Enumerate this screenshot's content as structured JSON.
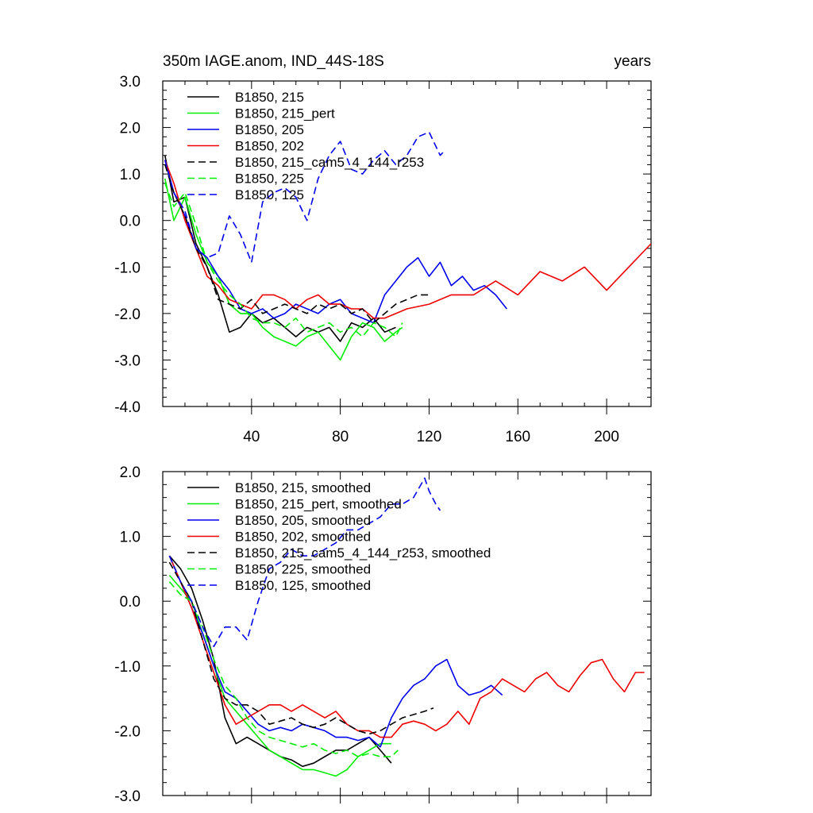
{
  "chart_data": [
    {
      "type": "line",
      "title_left": "350m IAGE.anom, IND_44S-18S",
      "title_right": "years",
      "xlim": [
        0,
        220
      ],
      "ylim": [
        -4.0,
        3.0
      ],
      "xticks": [
        40,
        80,
        120,
        160,
        200
      ],
      "xtick_labels": [
        "40",
        "80",
        "120",
        "160",
        "200"
      ],
      "yticks": [
        3.0,
        2.0,
        1.0,
        0.0,
        -1.0,
        -2.0,
        -3.0,
        -4.0
      ],
      "ytick_labels": [
        "3.0",
        "2.0",
        "1.0",
        "0.0",
        "-1.0",
        "-2.0",
        "-3.0",
        "-4.0"
      ],
      "legend_position": "top-left",
      "series": [
        {
          "name": "B1850, 215",
          "color": "#000000",
          "dash": "solid",
          "x": [
            1,
            5,
            10,
            15,
            20,
            25,
            30,
            35,
            40,
            45,
            50,
            55,
            60,
            65,
            70,
            75,
            80,
            85,
            90,
            95,
            100,
            105
          ],
          "y": [
            1.4,
            0.4,
            0.5,
            -0.5,
            -1.0,
            -1.6,
            -2.4,
            -2.3,
            -2.0,
            -2.2,
            -2.1,
            -2.3,
            -2.5,
            -2.3,
            -2.4,
            -2.3,
            -2.6,
            -2.2,
            -2.3,
            -2.1,
            -2.4,
            -2.3
          ]
        },
        {
          "name": "B1850, 215_pert",
          "color": "#00ee00",
          "dash": "solid",
          "x": [
            1,
            5,
            10,
            15,
            20,
            25,
            30,
            35,
            40,
            45,
            50,
            55,
            60,
            65,
            70,
            75,
            80,
            85,
            90,
            95,
            100,
            105,
            108
          ],
          "y": [
            0.9,
            0.0,
            0.5,
            -0.3,
            -0.9,
            -1.2,
            -1.8,
            -2.0,
            -2.0,
            -2.3,
            -2.5,
            -2.6,
            -2.7,
            -2.5,
            -2.4,
            -2.7,
            -3.0,
            -2.5,
            -2.2,
            -2.3,
            -2.6,
            -2.4,
            -2.3
          ]
        },
        {
          "name": "B1850, 205",
          "color": "#0000ee",
          "dash": "solid",
          "x": [
            1,
            5,
            10,
            15,
            20,
            25,
            30,
            35,
            40,
            45,
            50,
            55,
            60,
            65,
            70,
            75,
            80,
            85,
            90,
            95,
            100,
            105,
            110,
            115,
            120,
            125,
            130,
            135,
            140,
            145,
            150,
            155
          ],
          "y": [
            1.3,
            0.6,
            0.1,
            -0.6,
            -0.8,
            -1.2,
            -1.5,
            -1.9,
            -2.0,
            -1.9,
            -2.1,
            -2.0,
            -1.8,
            -1.9,
            -2.0,
            -1.8,
            -1.7,
            -2.0,
            -2.1,
            -2.2,
            -1.6,
            -1.3,
            -1.0,
            -0.8,
            -1.2,
            -0.9,
            -1.4,
            -1.2,
            -1.5,
            -1.4,
            -1.6,
            -1.9
          ]
        },
        {
          "name": "B1850, 202",
          "color": "#ee0000",
          "dash": "solid",
          "x": [
            1,
            5,
            10,
            15,
            20,
            25,
            30,
            35,
            40,
            45,
            50,
            55,
            60,
            65,
            70,
            75,
            80,
            85,
            90,
            95,
            100,
            110,
            120,
            130,
            140,
            150,
            160,
            170,
            180,
            190,
            200,
            210,
            220
          ],
          "y": [
            1.3,
            0.8,
            0.0,
            -0.6,
            -1.2,
            -1.4,
            -1.7,
            -1.8,
            -1.9,
            -1.6,
            -1.6,
            -1.7,
            -1.9,
            -1.7,
            -1.6,
            -1.8,
            -1.8,
            -1.9,
            -1.9,
            -2.1,
            -2.1,
            -1.9,
            -1.8,
            -1.6,
            -1.6,
            -1.3,
            -1.6,
            -1.1,
            -1.3,
            -1.0,
            -1.5,
            -1.0,
            -0.5
          ]
        },
        {
          "name": "B1850, 215_cam5_4_144_r253",
          "color": "#000000",
          "dash": "dashed",
          "x": [
            1,
            5,
            10,
            15,
            20,
            25,
            30,
            35,
            40,
            45,
            50,
            55,
            60,
            65,
            70,
            75,
            80,
            85,
            90,
            95,
            100,
            105,
            110,
            115,
            120
          ],
          "y": [
            1.2,
            0.6,
            0.1,
            -0.6,
            -1.0,
            -1.7,
            -1.8,
            -1.9,
            -1.7,
            -2.0,
            -1.9,
            -1.8,
            -1.9,
            -2.0,
            -1.8,
            -1.9,
            -1.8,
            -2.0,
            -1.9,
            -2.2,
            -2.0,
            -1.8,
            -1.7,
            -1.6,
            -1.6
          ]
        },
        {
          "name": "B1850, 225",
          "color": "#00ee00",
          "dash": "dashed",
          "x": [
            1,
            5,
            10,
            15,
            20,
            25,
            30,
            35,
            40,
            45,
            50,
            55,
            60,
            65,
            70,
            75,
            80,
            85,
            90,
            95,
            100,
            105,
            108
          ],
          "y": [
            0.8,
            0.3,
            0.6,
            -0.1,
            -0.9,
            -1.3,
            -1.6,
            -1.8,
            -2.1,
            -2.2,
            -2.2,
            -2.3,
            -2.1,
            -2.4,
            -2.3,
            -2.2,
            -2.4,
            -2.3,
            -2.5,
            -2.2,
            -2.3,
            -2.5,
            -2.2
          ]
        },
        {
          "name": "B1850, 125",
          "color": "#0000ee",
          "dash": "dashed",
          "x": [
            1,
            5,
            10,
            15,
            20,
            25,
            30,
            35,
            40,
            45,
            50,
            55,
            60,
            65,
            70,
            75,
            80,
            85,
            90,
            95,
            100,
            105,
            110,
            115,
            120,
            125,
            127
          ],
          "y": [
            1.3,
            0.6,
            0.2,
            -0.6,
            -0.8,
            -0.7,
            0.1,
            -0.3,
            -0.9,
            0.4,
            0.6,
            0.7,
            0.5,
            0.0,
            0.9,
            1.4,
            1.7,
            1.1,
            1.0,
            1.3,
            1.5,
            1.2,
            1.4,
            1.8,
            1.9,
            1.4,
            1.5
          ]
        }
      ]
    },
    {
      "type": "line",
      "xlim": [
        0,
        220
      ],
      "ylim": [
        -3.0,
        2.0
      ],
      "xticks": [
        40,
        80,
        120,
        160,
        200
      ],
      "yticks": [
        2.0,
        1.0,
        0.0,
        -1.0,
        -2.0,
        -3.0
      ],
      "ytick_labels": [
        "2.0",
        "1.0",
        "0.0",
        "-1.0",
        "-2.0",
        "-3.0"
      ],
      "legend_position": "top-left",
      "series": [
        {
          "name": "B1850, 215, smoothed",
          "color": "#000000",
          "dash": "solid",
          "x": [
            3,
            8,
            13,
            18,
            23,
            28,
            33,
            38,
            43,
            48,
            53,
            58,
            63,
            68,
            73,
            78,
            83,
            88,
            93,
            98,
            103
          ],
          "y": [
            0.7,
            0.5,
            0.2,
            -0.3,
            -0.9,
            -1.8,
            -2.2,
            -2.1,
            -2.2,
            -2.3,
            -2.4,
            -2.45,
            -2.55,
            -2.5,
            -2.4,
            -2.3,
            -2.3,
            -2.2,
            -2.1,
            -2.3,
            -2.5
          ]
        },
        {
          "name": "B1850, 215_pert, smoothed",
          "color": "#00ee00",
          "dash": "solid",
          "x": [
            3,
            8,
            13,
            18,
            23,
            28,
            33,
            38,
            43,
            48,
            53,
            58,
            63,
            68,
            73,
            78,
            83,
            88,
            93,
            98,
            103
          ],
          "y": [
            0.4,
            0.2,
            0.0,
            -0.5,
            -1.0,
            -1.5,
            -1.7,
            -1.9,
            -2.1,
            -2.3,
            -2.4,
            -2.5,
            -2.6,
            -2.6,
            -2.65,
            -2.7,
            -2.6,
            -2.4,
            -2.3,
            -2.2,
            -2.2
          ]
        },
        {
          "name": "B1850, 205, smoothed",
          "color": "#0000ee",
          "dash": "solid",
          "x": [
            3,
            8,
            13,
            18,
            23,
            28,
            33,
            38,
            43,
            48,
            53,
            58,
            63,
            68,
            73,
            78,
            83,
            88,
            93,
            98,
            103,
            108,
            113,
            118,
            123,
            128,
            133,
            138,
            143,
            148,
            153
          ],
          "y": [
            0.7,
            0.3,
            -0.1,
            -0.5,
            -1.0,
            -1.4,
            -1.5,
            -1.7,
            -1.9,
            -2.0,
            -1.95,
            -2.0,
            -1.9,
            -1.95,
            -2.0,
            -2.1,
            -2.1,
            -2.15,
            -2.1,
            -2.25,
            -1.8,
            -1.5,
            -1.3,
            -1.2,
            -1.0,
            -0.9,
            -1.3,
            -1.45,
            -1.4,
            -1.3,
            -1.45
          ]
        },
        {
          "name": "B1850, 202, smoothed",
          "color": "#ee0000",
          "dash": "solid",
          "x": [
            3,
            8,
            13,
            18,
            23,
            28,
            33,
            38,
            43,
            48,
            53,
            58,
            63,
            68,
            73,
            78,
            83,
            88,
            93,
            98,
            103,
            108,
            113,
            118,
            123,
            128,
            133,
            138,
            143,
            148,
            153,
            158,
            163,
            168,
            173,
            178,
            183,
            188,
            193,
            198,
            203,
            208,
            213,
            217
          ],
          "y": [
            0.7,
            0.3,
            -0.1,
            -0.6,
            -1.1,
            -1.6,
            -1.9,
            -1.8,
            -1.7,
            -1.6,
            -1.6,
            -1.7,
            -1.6,
            -1.7,
            -1.8,
            -1.7,
            -1.9,
            -2.0,
            -2.0,
            -2.1,
            -2.1,
            -1.9,
            -1.85,
            -1.9,
            -2.0,
            -1.9,
            -1.7,
            -1.9,
            -1.5,
            -1.4,
            -1.2,
            -1.3,
            -1.4,
            -1.2,
            -1.1,
            -1.3,
            -1.4,
            -1.15,
            -0.95,
            -0.9,
            -1.2,
            -1.4,
            -1.1,
            -1.1
          ]
        },
        {
          "name": "B1850, 215_cam5_4_144_r253, smoothed",
          "color": "#000000",
          "dash": "dashed",
          "x": [
            3,
            8,
            13,
            18,
            23,
            28,
            33,
            38,
            43,
            48,
            53,
            58,
            63,
            68,
            73,
            78,
            83,
            88,
            93,
            98,
            103,
            108,
            113,
            118,
            122
          ],
          "y": [
            0.6,
            0.3,
            0.0,
            -0.6,
            -1.2,
            -1.5,
            -1.6,
            -1.6,
            -1.7,
            -1.9,
            -1.85,
            -1.8,
            -1.9,
            -1.95,
            -1.9,
            -1.8,
            -1.9,
            -2.0,
            -2.05,
            -2.0,
            -1.9,
            -1.8,
            -1.75,
            -1.7,
            -1.65
          ]
        },
        {
          "name": "B1850, 225, smoothed",
          "color": "#00ee00",
          "dash": "dashed",
          "x": [
            3,
            8,
            13,
            18,
            23,
            28,
            33,
            38,
            43,
            48,
            53,
            58,
            63,
            68,
            73,
            78,
            83,
            88,
            93,
            98,
            103,
            106
          ],
          "y": [
            0.3,
            0.1,
            0.0,
            -0.4,
            -0.9,
            -1.3,
            -1.5,
            -1.8,
            -2.0,
            -2.1,
            -2.15,
            -2.2,
            -2.25,
            -2.2,
            -2.3,
            -2.35,
            -2.3,
            -2.4,
            -2.35,
            -2.4,
            -2.4,
            -2.3
          ]
        },
        {
          "name": "B1850, 125, smoothed",
          "color": "#0000ee",
          "dash": "dashed",
          "x": [
            3,
            8,
            13,
            18,
            23,
            28,
            33,
            38,
            43,
            48,
            53,
            58,
            63,
            68,
            73,
            78,
            83,
            88,
            93,
            98,
            103,
            108,
            113,
            118,
            120,
            123,
            125
          ],
          "y": [
            0.7,
            0.3,
            0.0,
            -0.4,
            -0.7,
            -0.4,
            -0.4,
            -0.6,
            0.0,
            0.5,
            0.6,
            0.8,
            0.7,
            0.7,
            0.8,
            0.9,
            1.1,
            1.1,
            1.2,
            1.3,
            1.5,
            1.5,
            1.6,
            1.9,
            1.7,
            1.5,
            1.4
          ]
        }
      ]
    }
  ]
}
